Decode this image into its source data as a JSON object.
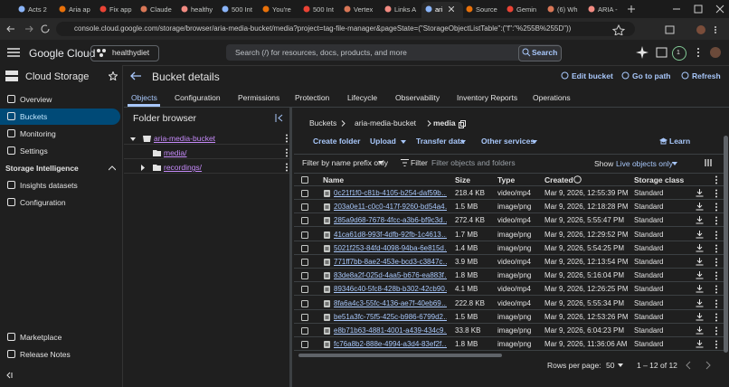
{
  "browser": {
    "tabs": [
      "Acts 2",
      "Aria ap",
      "Fix app",
      "Claude",
      "healthy",
      "500 Int",
      "You're",
      "500 Int",
      "Vertex",
      "Links A",
      "ari",
      "Source",
      "Gemin",
      "(6) Wh",
      "ARIA -"
    ],
    "url": "console.cloud.google.com/storage/browser/aria-media-bucket/media?project=tag-file-manager&pageState=(\"StorageObjectListTable\":(\"f\":\"%255B%255D\"))"
  },
  "header": {
    "brand": "Google Cloud",
    "project": "healthydiet",
    "search_placeholder": "Search (/) for resources, docs, products, and more",
    "search_button": "Search",
    "avatar_badge": "1"
  },
  "nav": {
    "title": "Cloud Storage",
    "items": [
      "Overview",
      "Buckets",
      "Monitoring",
      "Settings"
    ],
    "section": "Storage Intelligence",
    "section_items": [
      "Insights datasets",
      "Configuration"
    ],
    "bottom_items": [
      "Marketplace",
      "Release Notes"
    ]
  },
  "page": {
    "title": "Bucket details",
    "actions": [
      "Edit bucket",
      "Go to path",
      "Refresh"
    ],
    "tabs": [
      "Objects",
      "Configuration",
      "Permissions",
      "Protection",
      "Lifecycle",
      "Observability",
      "Inventory Reports",
      "Operations"
    ]
  },
  "folder_browser": {
    "title": "Folder browser",
    "tree": [
      "aria-media-bucket",
      "media/",
      "recordings/"
    ]
  },
  "breadcrumb": [
    "Buckets",
    "aria-media-bucket",
    "media"
  ],
  "toolbar": {
    "buttons": [
      "Create folder",
      "Upload",
      "Transfer data",
      "Other services"
    ],
    "learn": "Learn"
  },
  "filter": {
    "prefix": "Filter by name prefix only",
    "label": "Filter",
    "placeholder": "Filter objects and folders",
    "show": "Show",
    "show_value": "Live objects only"
  },
  "table": {
    "columns": [
      "Name",
      "Size",
      "Type",
      "Created",
      "Storage class"
    ],
    "rows": [
      [
        "0c21f1f0-c81b-4105-b254-daf59b…",
        "218.4 KB",
        "video/mp4",
        "Mar 9, 2026, 12:55:39 PM",
        "Standard"
      ],
      [
        "203a0e11-c0c0-417f-9260-bd54a4…",
        "1.5 MB",
        "image/png",
        "Mar 9, 2026, 12:18:28 PM",
        "Standard"
      ],
      [
        "285a9d68-7678-4fcc-a3b6-bf9c3d…",
        "272.4 KB",
        "video/mp4",
        "Mar 9, 2026, 5:55:47 PM",
        "Standard"
      ],
      [
        "41ca61d8-993f-4dfb-92fb-1c4613…",
        "1.7 MB",
        "image/png",
        "Mar 9, 2026, 12:29:52 PM",
        "Standard"
      ],
      [
        "5021f253-84fd-4098-94ba-6e815d…",
        "1.4 MB",
        "image/png",
        "Mar 9, 2026, 5:54:25 PM",
        "Standard"
      ],
      [
        "771ff7bb-8ae2-453e-bcd3-c3847c…",
        "3.9 MB",
        "video/mp4",
        "Mar 9, 2026, 12:13:54 PM",
        "Standard"
      ],
      [
        "83de8a2f-025d-4aa5-b676-ea883f…",
        "1.8 MB",
        "image/png",
        "Mar 9, 2026, 5:16:04 PM",
        "Standard"
      ],
      [
        "89346c40-5fc8-428b-b302-42cb90…",
        "4.1 MB",
        "video/mp4",
        "Mar 9, 2026, 12:26:25 PM",
        "Standard"
      ],
      [
        "8fa6a4c3-55fc-4136-ae7f-40eb69…",
        "222.8 KB",
        "video/mp4",
        "Mar 9, 2026, 5:55:34 PM",
        "Standard"
      ],
      [
        "be51a3fc-75f5-425c-b986-6799d2…",
        "1.5 MB",
        "image/png",
        "Mar 9, 2026, 12:53:26 PM",
        "Standard"
      ],
      [
        "e8b71b63-4881-4001-a439-434c9…",
        "33.8 KB",
        "image/png",
        "Mar 9, 2026, 6:04:23 PM",
        "Standard"
      ],
      [
        "fc76a8b2-888e-4994-a3d4-83ef2f…",
        "1.8 MB",
        "image/png",
        "Mar 9, 2026, 11:36:06 AM",
        "Standard"
      ]
    ]
  },
  "pagination": {
    "label": "Rows per page:",
    "value": "50",
    "range": "1 – 12 of 12"
  }
}
